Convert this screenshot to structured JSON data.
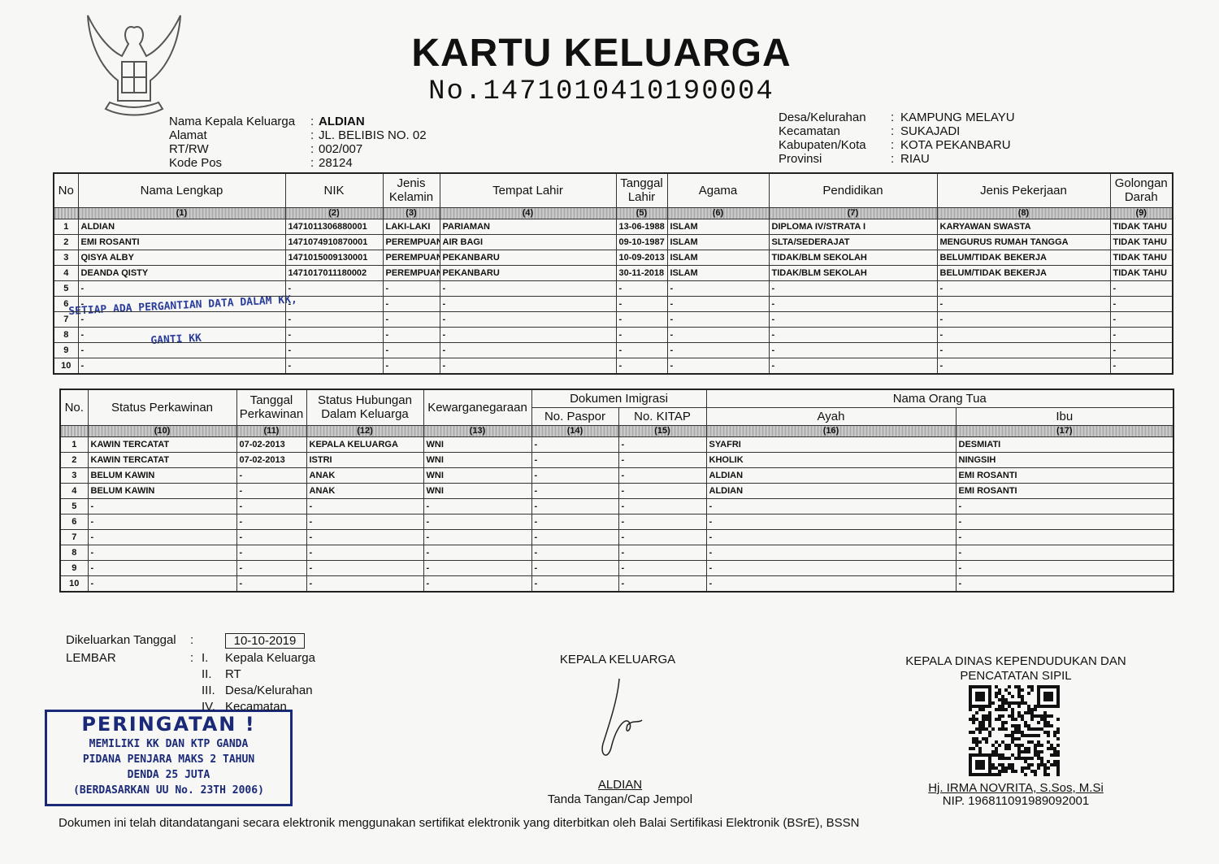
{
  "separator": ":",
  "header": {
    "title": "KARTU KELUARGA",
    "number": "No.1471010410190004"
  },
  "info_left": [
    {
      "label": "Nama Kepala Keluarga",
      "value": "ALDIAN"
    },
    {
      "label": "Alamat",
      "value": "JL. BELIBIS NO. 02"
    },
    {
      "label": "RT/RW",
      "value": "002/007"
    },
    {
      "label": "Kode Pos",
      "value": "28124"
    }
  ],
  "info_right": [
    {
      "label": "Desa/Kelurahan",
      "value": "KAMPUNG MELAYU"
    },
    {
      "label": "Kecamatan",
      "value": "SUKAJADI"
    },
    {
      "label": "Kabupaten/Kota",
      "value": "KOTA PEKANBARU"
    },
    {
      "label": "Provinsi",
      "value": "RIAU"
    }
  ],
  "family_table": {
    "headers": [
      "No",
      "Nama Lengkap",
      "NIK",
      "Jenis Kelamin",
      "Tempat Lahir",
      "Tanggal Lahir",
      "Agama",
      "Pendidikan",
      "Jenis Pekerjaan",
      "Golongan Darah"
    ],
    "column_numbers": [
      "(1)",
      "(2)",
      "(3)",
      "(4)",
      "(5)",
      "(6)",
      "(7)",
      "(8)",
      "(9)"
    ],
    "rows": [
      [
        "1",
        "ALDIAN",
        "1471011306880001",
        "LAKI-LAKI",
        "PARIAMAN",
        "13-06-1988",
        "ISLAM",
        "DIPLOMA IV/STRATA I",
        "KARYAWAN SWASTA",
        "TIDAK TAHU"
      ],
      [
        "2",
        "EMI ROSANTI",
        "1471074910870001",
        "PEREMPUAN",
        "AIR BAGI",
        "09-10-1987",
        "ISLAM",
        "SLTA/SEDERAJAT",
        "MENGURUS RUMAH TANGGA",
        "TIDAK TAHU"
      ],
      [
        "3",
        "QISYA ALBY",
        "1471015009130001",
        "PEREMPUAN",
        "PEKANBARU",
        "10-09-2013",
        "ISLAM",
        "TIDAK/BLM SEKOLAH",
        "BELUM/TIDAK BEKERJA",
        "TIDAK TAHU"
      ],
      [
        "4",
        "DEANDA QISTY",
        "1471017011180002",
        "PEREMPUAN",
        "PEKANBARU",
        "30-11-2018",
        "ISLAM",
        "TIDAK/BLM SEKOLAH",
        "BELUM/TIDAK BEKERJA",
        "TIDAK TAHU"
      ],
      [
        "5",
        "-",
        "-",
        "-",
        "-",
        "-",
        "-",
        "-",
        "-",
        "-"
      ],
      [
        "6",
        "-",
        "-",
        "-",
        "-",
        "-",
        "-",
        "-",
        "-",
        "-"
      ],
      [
        "7",
        "-",
        "-",
        "-",
        "-",
        "-",
        "-",
        "-",
        "-",
        "-"
      ],
      [
        "8",
        "-",
        "-",
        "-",
        "-",
        "-",
        "-",
        "-",
        "-",
        "-"
      ],
      [
        "9",
        "-",
        "-",
        "-",
        "-",
        "-",
        "-",
        "-",
        "-",
        "-"
      ],
      [
        "10",
        "-",
        "-",
        "-",
        "-",
        "-",
        "-",
        "-",
        "-",
        "-"
      ]
    ]
  },
  "handwritten_note": [
    "SETIAP ADA PERGANTIAN DATA DALAM KK,",
    "GANTI KK"
  ],
  "status_table": {
    "headers": [
      "No.",
      "Status Perkawinan",
      "Tanggal Perkawinan",
      "Status Hubungan Dalam Keluarga",
      "Kewarganegaraan"
    ],
    "groups": [
      {
        "label": "Dokumen Imigrasi",
        "columns": [
          "No. Paspor",
          "No. KITAP"
        ]
      },
      {
        "label": "Nama Orang Tua",
        "columns": [
          "Ayah",
          "Ibu"
        ]
      }
    ],
    "column_numbers": [
      "(10)",
      "(11)",
      "(12)",
      "(13)",
      "(14)",
      "(15)",
      "(16)",
      "(17)"
    ],
    "rows": [
      [
        "1",
        "KAWIN TERCATAT",
        "07-02-2013",
        "KEPALA KELUARGA",
        "WNI",
        "-",
        "-",
        "SYAFRI",
        "DESMIATI"
      ],
      [
        "2",
        "KAWIN TERCATAT",
        "07-02-2013",
        "ISTRI",
        "WNI",
        "-",
        "-",
        "KHOLIK",
        "NINGSIH"
      ],
      [
        "3",
        "BELUM KAWIN",
        "-",
        "ANAK",
        "WNI",
        "-",
        "-",
        "ALDIAN",
        "EMI ROSANTI"
      ],
      [
        "4",
        "BELUM KAWIN",
        "-",
        "ANAK",
        "WNI",
        "-",
        "-",
        "ALDIAN",
        "EMI ROSANTI"
      ],
      [
        "5",
        "-",
        "-",
        "-",
        "-",
        "-",
        "-",
        "-",
        "-"
      ],
      [
        "6",
        "-",
        "-",
        "-",
        "-",
        "-",
        "-",
        "-",
        "-"
      ],
      [
        "7",
        "-",
        "-",
        "-",
        "-",
        "-",
        "-",
        "-",
        "-"
      ],
      [
        "8",
        "-",
        "-",
        "-",
        "-",
        "-",
        "-",
        "-",
        "-"
      ],
      [
        "9",
        "-",
        "-",
        "-",
        "-",
        "-",
        "-",
        "-",
        "-"
      ],
      [
        "10",
        "-",
        "-",
        "-",
        "-",
        "-",
        "-",
        "-",
        "-"
      ]
    ]
  },
  "footer": {
    "issued_label": "Dikeluarkan Tanggal",
    "issued_date": "10-10-2019",
    "sheet_label": "LEMBAR",
    "sheets": [
      {
        "numeral": "I.",
        "label": "Kepala Keluarga"
      },
      {
        "numeral": "II.",
        "label": "RT"
      },
      {
        "numeral": "III.",
        "label": "Desa/Kelurahan"
      },
      {
        "numeral": "IV.",
        "label": "Kecamatan"
      }
    ],
    "warning": [
      "PERINGATAN !",
      "MEMILIKI KK DAN KTP GANDA",
      "PIDANA PENJARA MAKS 2 TAHUN",
      "DENDA 25 JUTA",
      "(BERDASARKAN UU No. 23TH 2006)"
    ],
    "head_of_family": {
      "title": "KEPALA KELUARGA",
      "name": "ALDIAN",
      "caption": "Tanda Tangan/Cap Jempol"
    },
    "official": {
      "title": [
        "KEPALA DINAS KEPENDUDUKAN DAN",
        "PENCATATAN SIPIL"
      ],
      "name": "Hj. IRMA NOVRITA, S.Sos, M.Si",
      "nip": "NIP. 196811091989092001"
    },
    "note": "Dokumen ini telah ditandatangani secara elektronik menggunakan sertifikat elektronik yang diterbitkan oleh Balai Sertifikasi Elektronik (BSrE), BSSN"
  }
}
